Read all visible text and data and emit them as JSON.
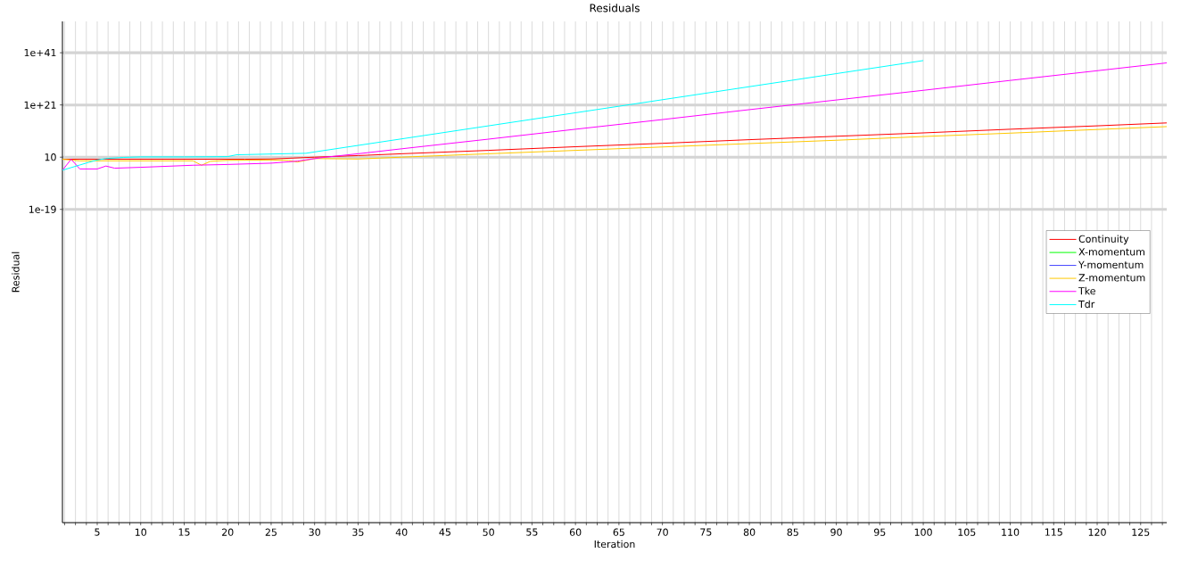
{
  "chart_data": {
    "type": "line",
    "title": "Residuals",
    "xlabel": "Iteration",
    "ylabel": "Residual",
    "log": "y",
    "xlim": [
      1,
      128
    ],
    "ylim": [
      1e-139,
      1e+53
    ],
    "xticks": [
      {
        "value": 1.25,
        "label": null
      },
      {
        "value": 2.5,
        "label": null
      },
      {
        "value": 3.75,
        "label": null
      },
      5,
      {
        "value": 6.25,
        "label": null
      },
      {
        "value": 7.5,
        "label": null
      },
      {
        "value": 8.75,
        "label": null
      },
      10,
      {
        "value": 11.25,
        "label": null
      },
      {
        "value": 12.5,
        "label": null
      },
      {
        "value": 13.75,
        "label": null
      },
      15,
      {
        "value": 16.25,
        "label": null
      },
      {
        "value": 17.5,
        "label": null
      },
      {
        "value": 18.75,
        "label": null
      },
      20,
      {
        "value": 21.25,
        "label": null
      },
      {
        "value": 22.5,
        "label": null
      },
      {
        "value": 23.75,
        "label": null
      },
      25,
      {
        "value": 26.25,
        "label": null
      },
      {
        "value": 27.5,
        "label": null
      },
      {
        "value": 28.75,
        "label": null
      },
      30,
      {
        "value": 31.25,
        "label": null
      },
      {
        "value": 32.5,
        "label": null
      },
      {
        "value": 33.75,
        "label": null
      },
      35,
      {
        "value": 36.25,
        "label": null
      },
      {
        "value": 37.5,
        "label": null
      },
      {
        "value": 38.75,
        "label": null
      },
      40,
      {
        "value": 41.25,
        "label": null
      },
      {
        "value": 42.5,
        "label": null
      },
      {
        "value": 43.75,
        "label": null
      },
      45,
      {
        "value": 46.25,
        "label": null
      },
      {
        "value": 47.5,
        "label": null
      },
      {
        "value": 48.75,
        "label": null
      },
      50,
      {
        "value": 51.25,
        "label": null
      },
      {
        "value": 52.5,
        "label": null
      },
      {
        "value": 53.75,
        "label": null
      },
      55,
      {
        "value": 56.25,
        "label": null
      },
      {
        "value": 57.5,
        "label": null
      },
      {
        "value": 58.75,
        "label": null
      },
      60,
      {
        "value": 61.25,
        "label": null
      },
      {
        "value": 62.5,
        "label": null
      },
      {
        "value": 63.75,
        "label": null
      },
      65,
      {
        "value": 66.25,
        "label": null
      },
      {
        "value": 67.5,
        "label": null
      },
      {
        "value": 68.75,
        "label": null
      },
      70,
      {
        "value": 71.25,
        "label": null
      },
      {
        "value": 72.5,
        "label": null
      },
      {
        "value": 73.75,
        "label": null
      },
      75,
      {
        "value": 76.25,
        "label": null
      },
      {
        "value": 77.5,
        "label": null
      },
      {
        "value": 78.75,
        "label": null
      },
      80,
      {
        "value": 81.25,
        "label": null
      },
      {
        "value": 82.5,
        "label": null
      },
      {
        "value": 83.75,
        "label": null
      },
      85,
      {
        "value": 86.25,
        "label": null
      },
      {
        "value": 87.5,
        "label": null
      },
      {
        "value": 88.75,
        "label": null
      },
      90,
      {
        "value": 91.25,
        "label": null
      },
      {
        "value": 92.5,
        "label": null
      },
      {
        "value": 93.75,
        "label": null
      },
      95,
      {
        "value": 96.25,
        "label": null
      },
      {
        "value": 97.5,
        "label": null
      },
      {
        "value": 98.75,
        "label": null
      },
      100,
      {
        "value": 101.25,
        "label": null
      },
      {
        "value": 102.5,
        "label": null
      },
      {
        "value": 103.75,
        "label": null
      },
      105,
      {
        "value": 106.25,
        "label": null
      },
      {
        "value": 107.5,
        "label": null
      },
      {
        "value": 108.75,
        "label": null
      },
      110,
      {
        "value": 111.25,
        "label": null
      },
      {
        "value": 112.5,
        "label": null
      },
      {
        "value": 113.75,
        "label": null
      },
      115,
      {
        "value": 116.25,
        "label": null
      },
      {
        "value": 117.5,
        "label": null
      },
      {
        "value": 118.75,
        "label": null
      },
      120,
      {
        "value": 121.25,
        "label": null
      },
      {
        "value": 122.5,
        "label": null
      },
      {
        "value": 123.75,
        "label": null
      },
      125,
      {
        "value": 126.25,
        "label": null
      },
      {
        "value": 127.5,
        "label": null
      }
    ],
    "yticks": [
      {
        "value": 1e-19,
        "label": "1e-19"
      },
      10,
      {
        "value": 1e+21,
        "label": "1e+21"
      },
      {
        "value": 1e+41,
        "label": "1e+41"
      }
    ],
    "grid": true,
    "legend": "right",
    "series": [
      {
        "name": "Continuity",
        "color": "#ff0000",
        "x": [
          1,
          5,
          10,
          15,
          20,
          22,
          25,
          30,
          35,
          40,
          50,
          60,
          70,
          80,
          90,
          100,
          110,
          120,
          128
        ],
        "values": [
          1.6,
          1.6,
          1.6,
          1.6,
          1.6,
          1.6,
          2,
          10,
          40,
          200,
          4000.0,
          100000.0,
          2000000.0,
          50000000.0,
          1000000000.0,
          20000000000.0,
          500000000000.0,
          10000000000000.0,
          130000000000000.0
        ]
      },
      {
        "name": "X-momentum",
        "color": "#00ff00"
      },
      {
        "name": "Y-momentum",
        "color": "#4040ff"
      },
      {
        "name": "Z-momentum",
        "color": "#ffc800",
        "x": [
          1,
          3,
          10,
          16,
          17,
          18,
          20,
          25,
          27,
          28,
          30,
          35,
          40,
          50,
          60,
          70,
          80,
          90,
          100,
          110,
          120,
          128
        ],
        "values": [
          1.6,
          0.4,
          0.4,
          0.4,
          0.008,
          0.25,
          0.6,
          0.8,
          0.6,
          0.13,
          3,
          2,
          10,
          200.0,
          4000.0,
          80000.0,
          1600000.0,
          30000000.0,
          800000000.0,
          16000000000.0,
          400000000000.0,
          5000000000000.0
        ]
      },
      {
        "name": "Tke",
        "color": "#ff00ff",
        "x": [
          1,
          2,
          3,
          5,
          6,
          7,
          10,
          16,
          20,
          25,
          28,
          31,
          35,
          40,
          50,
          60,
          70,
          80,
          90,
          100,
          110,
          120,
          128
        ],
        "values": [
          0.0001,
          1.6,
          0.0003,
          0.0003,
          0.004,
          0.0006,
          0.0013,
          0.008,
          0.016,
          0.05,
          0.3,
          8,
          200.0,
          16000.0,
          80000000.0,
          500000000000.0,
          2500000000000000.0,
          1.6e+19,
          8e+22,
          4e+26,
          2.5e+30,
          1.3e+34,
          1.3e+37
        ]
      },
      {
        "name": "Tdr",
        "color": "#00ffff",
        "x": [
          1,
          2,
          3,
          4,
          5,
          6,
          8,
          10,
          15,
          20,
          21,
          25,
          29,
          30,
          40,
          50,
          60,
          70,
          80,
          90,
          100
        ],
        "values": [
          0.0001,
          0.001,
          0.01,
          0.1,
          0.8,
          3,
          8,
          13,
          13,
          16,
          80,
          160,
          300,
          1000.0,
          100000000.0,
          10000000000000.0,
          1e+18,
          1e+23,
          1e+28,
          1e+33,
          1e+38
        ]
      }
    ]
  }
}
